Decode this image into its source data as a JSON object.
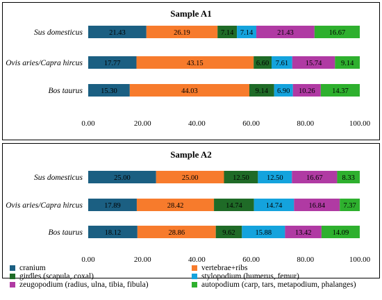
{
  "legend": [
    {
      "label": "cranium",
      "color": "#1b5f82"
    },
    {
      "label": "vertebrae+ribs",
      "color": "#f77b2c"
    },
    {
      "label": "girdles (scapula, coxal)",
      "color": "#1f6b27"
    },
    {
      "label": "stylopodium (humerus, femur)",
      "color": "#14a3dd"
    },
    {
      "label": "zeugopodium (radius, ulna, tibia, fibula)",
      "color": "#b03aa3"
    },
    {
      "label": "autopodium (carp, tars, metapodium, phalanges)",
      "color": "#2eb02e"
    }
  ],
  "chart_data": [
    {
      "type": "bar",
      "orientation": "horizontal",
      "stacked": true,
      "title": "Sample A1",
      "categories": [
        "Sus domesticus",
        "Ovis aries/Capra hircus",
        "Bos taurus"
      ],
      "series": [
        {
          "name": "cranium",
          "values": [
            21.43,
            17.77,
            15.3
          ]
        },
        {
          "name": "vertebrae+ribs",
          "values": [
            26.19,
            43.15,
            44.03
          ]
        },
        {
          "name": "girdles (scapula, coxal)",
          "values": [
            7.14,
            6.6,
            9.14
          ]
        },
        {
          "name": "stylopodium (humerus, femur)",
          "values": [
            7.14,
            7.61,
            6.9
          ]
        },
        {
          "name": "zeugopodium (radius, ulna, tibia, fibula)",
          "values": [
            21.43,
            15.74,
            10.26
          ]
        },
        {
          "name": "autopodium (carp, tars, metapodium, phalanges)",
          "values": [
            16.67,
            9.14,
            14.37
          ]
        }
      ],
      "xlim": [
        0,
        100
      ],
      "xticks": [
        "0.00",
        "20.00",
        "40.00",
        "60.00",
        "80.00",
        "100.00"
      ],
      "grid": false
    },
    {
      "type": "bar",
      "orientation": "horizontal",
      "stacked": true,
      "title": "Sample A2",
      "categories": [
        "Sus domesticus",
        "Ovis aries/Capra hircus",
        "Bos taurus"
      ],
      "series": [
        {
          "name": "cranium",
          "values": [
            25.0,
            17.89,
            18.12
          ]
        },
        {
          "name": "vertebrae+ribs",
          "values": [
            25.0,
            28.42,
            28.86
          ]
        },
        {
          "name": "girdles (scapula, coxal)",
          "values": [
            12.5,
            14.74,
            9.62
          ]
        },
        {
          "name": "stylopodium (humerus, femur)",
          "values": [
            12.5,
            14.74,
            15.88
          ]
        },
        {
          "name": "zeugopodium (radius, ulna, tibia, fibula)",
          "values": [
            16.67,
            16.84,
            13.42
          ]
        },
        {
          "name": "autopodium (carp, tars, metapodium, phalanges)",
          "values": [
            8.33,
            7.37,
            14.09
          ]
        }
      ],
      "xlim": [
        0,
        100
      ],
      "xticks": [
        "0.00",
        "20.00",
        "40.00",
        "60.00",
        "80.00",
        "100.00"
      ],
      "grid": false
    }
  ]
}
